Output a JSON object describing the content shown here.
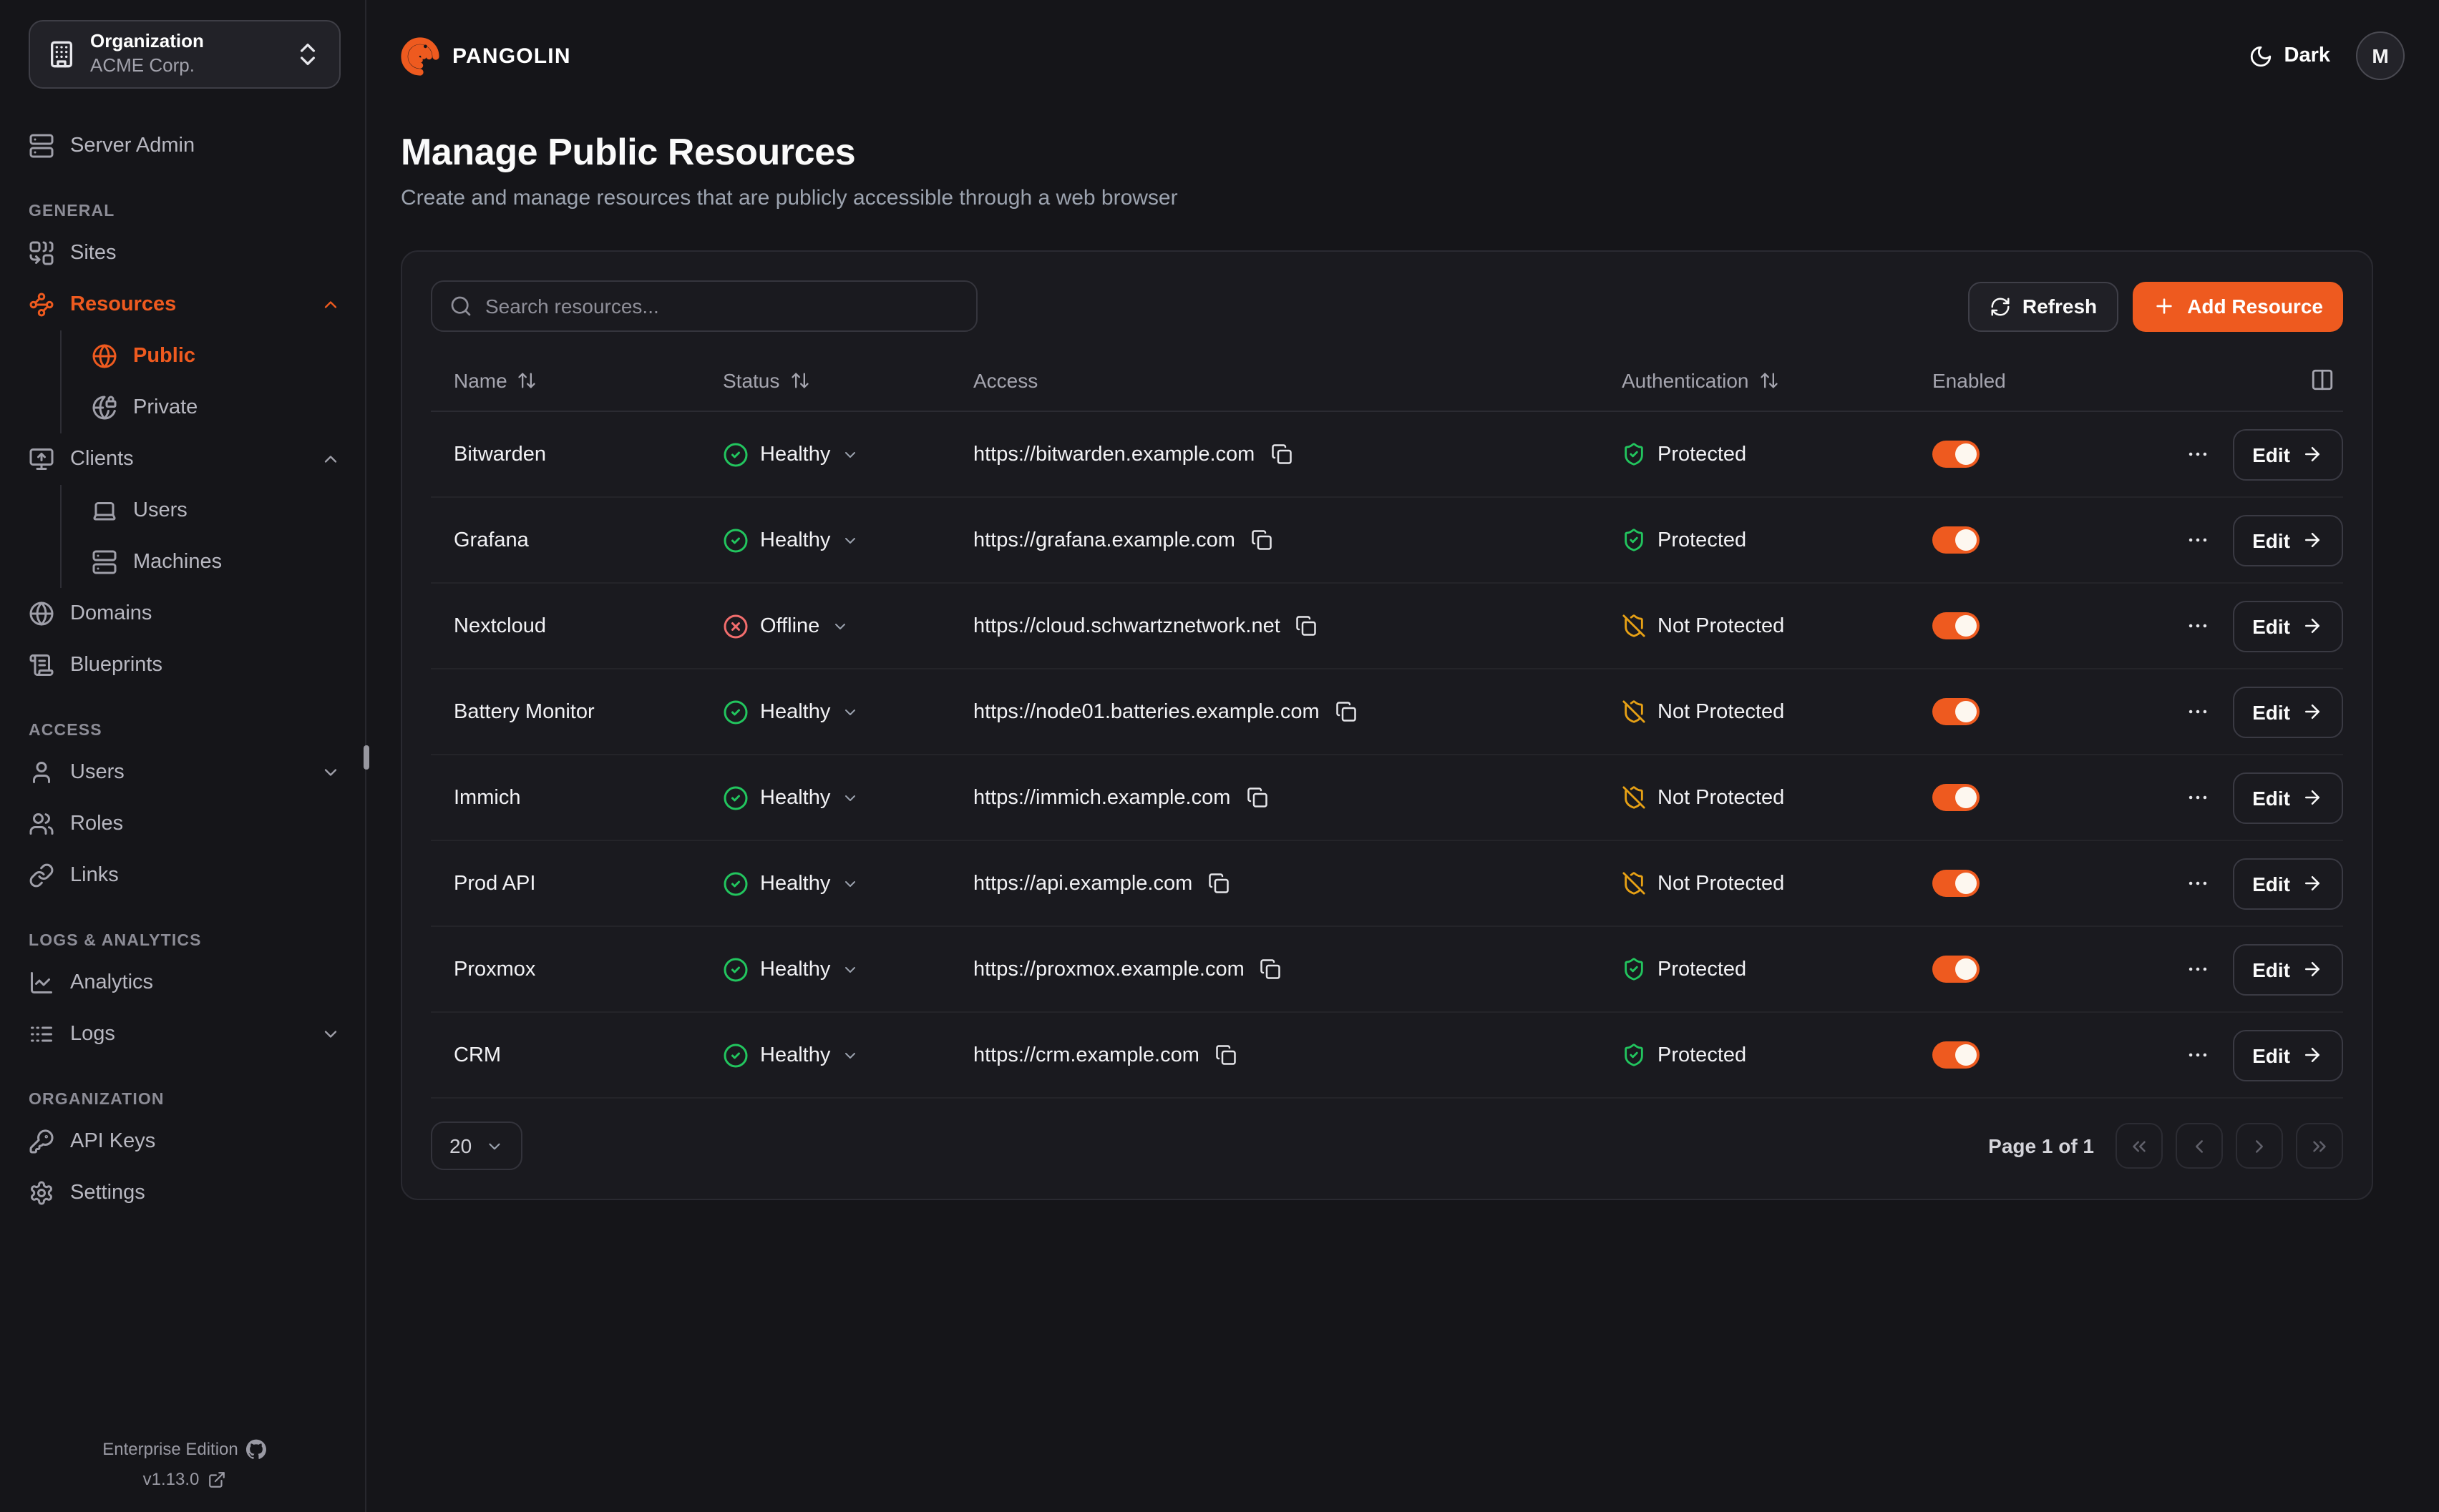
{
  "colors": {
    "accent": "#ee5a1f",
    "green": "#22c55e",
    "red": "#f26d6d",
    "amber": "#e7a115"
  },
  "header": {
    "brand": "PANGOLIN",
    "theme_label": "Dark",
    "avatar_initial": "M"
  },
  "page": {
    "title": "Manage Public Resources",
    "subtitle": "Create and manage resources that are publicly accessible through a web browser"
  },
  "sidebar": {
    "org": {
      "label": "Organization",
      "value": "ACME Corp.",
      "icon": "building"
    },
    "primary": [
      {
        "label": "Server Admin",
        "icon": "server"
      }
    ],
    "sections": [
      {
        "label": "GENERAL",
        "items": [
          {
            "label": "Sites",
            "icon": "combine"
          },
          {
            "label": "Resources",
            "icon": "waypoints",
            "active": true,
            "chevron": "up",
            "children": [
              {
                "label": "Public",
                "icon": "globe",
                "active": true
              },
              {
                "label": "Private",
                "icon": "globe-lock"
              }
            ]
          },
          {
            "label": "Clients",
            "icon": "monitor-up",
            "chevron": "up",
            "children": [
              {
                "label": "Users",
                "icon": "laptop"
              },
              {
                "label": "Machines",
                "icon": "server"
              }
            ]
          },
          {
            "label": "Domains",
            "icon": "globe"
          },
          {
            "label": "Blueprints",
            "icon": "scroll-text"
          }
        ]
      },
      {
        "label": "ACCESS",
        "items": [
          {
            "label": "Users",
            "icon": "user",
            "chevron": "down"
          },
          {
            "label": "Roles",
            "icon": "users"
          },
          {
            "label": "Links",
            "icon": "link"
          }
        ]
      },
      {
        "label": "LOGS & ANALYTICS",
        "items": [
          {
            "label": "Analytics",
            "icon": "chart-line"
          },
          {
            "label": "Logs",
            "icon": "logs",
            "chevron": "down"
          }
        ]
      },
      {
        "label": "ORGANIZATION",
        "items": [
          {
            "label": "API Keys",
            "icon": "key"
          },
          {
            "label": "Settings",
            "icon": "settings"
          }
        ]
      }
    ],
    "footer": {
      "edition": "Enterprise Edition",
      "version": "v1.13.0"
    }
  },
  "toolbar": {
    "search_placeholder": "Search resources...",
    "refresh_label": "Refresh",
    "add_label": "Add Resource"
  },
  "table": {
    "columns": [
      {
        "label": "Name",
        "sortable": true
      },
      {
        "label": "Status",
        "sortable": true
      },
      {
        "label": "Access",
        "sortable": false
      },
      {
        "label": "Authentication",
        "sortable": true
      },
      {
        "label": "Enabled",
        "sortable": false
      }
    ],
    "edit_label": "Edit",
    "rows": [
      {
        "name": "Bitwarden",
        "status": "Healthy",
        "state": "healthy",
        "url": "https://bitwarden.example.com",
        "auth": "Protected",
        "protected": true,
        "enabled": true
      },
      {
        "name": "Grafana",
        "status": "Healthy",
        "state": "healthy",
        "url": "https://grafana.example.com",
        "auth": "Protected",
        "protected": true,
        "enabled": true
      },
      {
        "name": "Nextcloud",
        "status": "Offline",
        "state": "offline",
        "url": "https://cloud.schwartznetwork.net",
        "auth": "Not Protected",
        "protected": false,
        "enabled": true
      },
      {
        "name": "Battery Monitor",
        "status": "Healthy",
        "state": "healthy",
        "url": "https://node01.batteries.example.com",
        "auth": "Not Protected",
        "protected": false,
        "enabled": true
      },
      {
        "name": "Immich",
        "status": "Healthy",
        "state": "healthy",
        "url": "https://immich.example.com",
        "auth": "Not Protected",
        "protected": false,
        "enabled": true
      },
      {
        "name": "Prod API",
        "status": "Healthy",
        "state": "healthy",
        "url": "https://api.example.com",
        "auth": "Not Protected",
        "protected": false,
        "enabled": true
      },
      {
        "name": "Proxmox",
        "status": "Healthy",
        "state": "healthy",
        "url": "https://proxmox.example.com",
        "auth": "Protected",
        "protected": true,
        "enabled": true
      },
      {
        "name": "CRM",
        "status": "Healthy",
        "state": "healthy",
        "url": "https://crm.example.com",
        "auth": "Protected",
        "protected": true,
        "enabled": true
      }
    ]
  },
  "pagination": {
    "page_size": "20",
    "info": "Page 1 of 1"
  }
}
